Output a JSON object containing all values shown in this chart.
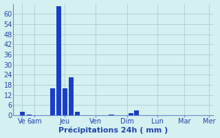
{
  "bar_positions": [
    0.5,
    0.9,
    2.2,
    2.55,
    2.9,
    3.25,
    3.6,
    5.5,
    6.6,
    6.9
  ],
  "bar_heights": [
    2.0,
    0.3,
    16.0,
    64.5,
    16.0,
    22.5,
    2.0,
    0.5,
    1.2,
    3.0
  ],
  "bar_width": 0.28,
  "bar_color": "#1a3fc4",
  "background_color": "#d4f0f0",
  "grid_color": "#aecece",
  "axis_color": "#6688cc",
  "text_color": "#2244aa",
  "xlim": [
    0,
    11.2
  ],
  "ylim": [
    0,
    66
  ],
  "yticks": [
    0,
    6,
    12,
    18,
    24,
    30,
    36,
    42,
    48,
    54,
    60
  ],
  "xtick_positions": [
    0.5,
    1.2,
    2.9,
    4.6,
    6.4,
    8.1,
    9.6,
    11.0
  ],
  "xtick_labels": [
    "Ve",
    "6am",
    "Jeu",
    "Ven",
    "Dim",
    "Lun",
    "Mar",
    "Mer"
  ],
  "xlabel": "Précipitations 24h ( mm )",
  "fontsize": 7,
  "xlabel_fontsize": 8
}
